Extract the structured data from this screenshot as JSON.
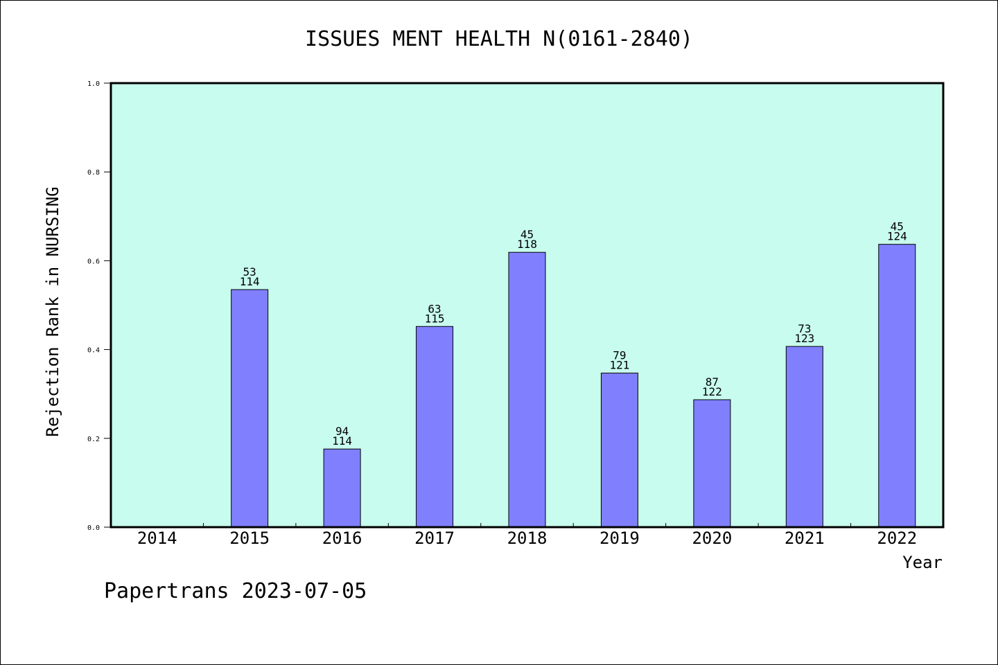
{
  "chart_data": {
    "type": "bar",
    "title": "ISSUES MENT HEALTH N(0161-2840)",
    "xlabel": "Year",
    "ylabel": "Rejection Rank in NURSING",
    "ylim": [
      0,
      1.0
    ],
    "yticks": [
      "0.0",
      "0.2",
      "0.4",
      "0.6",
      "0.8",
      "1.0"
    ],
    "categories": [
      "2014",
      "2015",
      "2016",
      "2017",
      "2018",
      "2019",
      "2020",
      "2021",
      "2022"
    ],
    "values": [
      null,
      0.535,
      0.176,
      0.452,
      0.619,
      0.347,
      0.287,
      0.407,
      0.637
    ],
    "labels_top": [
      null,
      "53",
      "94",
      "63",
      "45",
      "79",
      "87",
      "73",
      "45"
    ],
    "labels_bottom": [
      null,
      "114",
      "114",
      "115",
      "118",
      "121",
      "122",
      "123",
      "124"
    ],
    "grid": false,
    "colors": {
      "plot_background": "#c8fcee",
      "bar_fill": "#8080ff",
      "bar_stroke": "#000000",
      "axis": "#000000"
    }
  },
  "footer": {
    "watermark": "Papertrans 2023-07-05"
  }
}
